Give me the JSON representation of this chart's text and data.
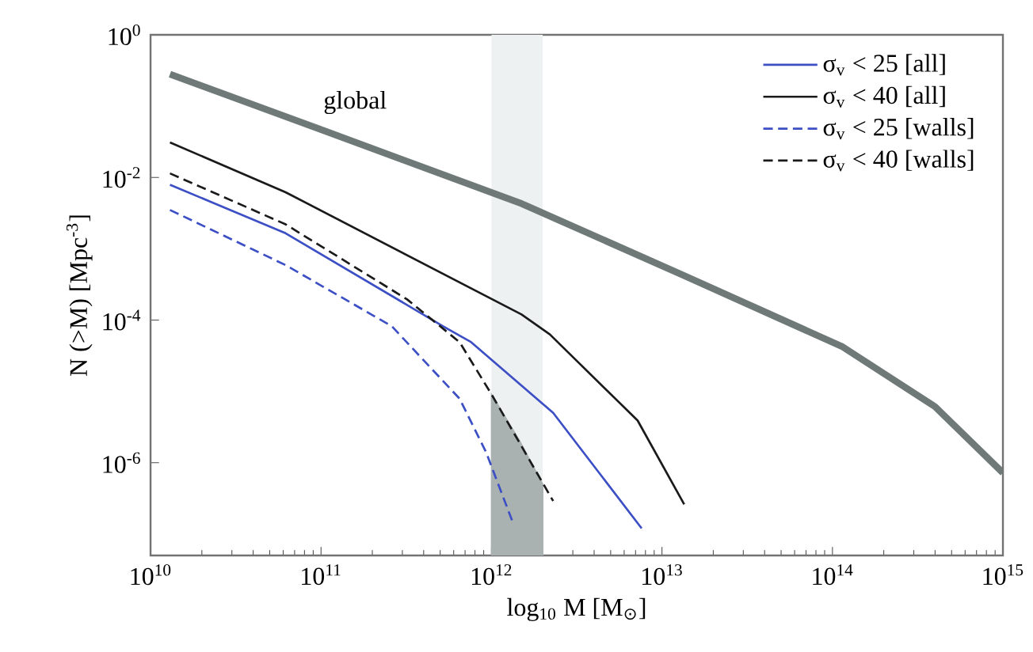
{
  "chart_data": {
    "type": "line",
    "xlabel": "log$_{10}$ M [M$_{⊙}$]",
    "ylabel": "N (>M) [Mpc$^{-3}$]",
    "log": "xy",
    "xlim": [
      10000000000.0,
      1000000000000000.0
    ],
    "ylim": [
      5e-08,
      1
    ],
    "xticks": [
      {
        "value": 10000000000.0,
        "label": "10$^{10}$"
      },
      {
        "value": 100000000000.0,
        "label": "10$^{11}$"
      },
      {
        "value": 1000000000000.0,
        "label": "10$^{12}$"
      },
      {
        "value": 10000000000000.0,
        "label": "10$^{13}$"
      },
      {
        "value": 100000000000000.0,
        "label": "10$^{14}$"
      },
      {
        "value": 1000000000000000.0,
        "label": "10$^{15}$"
      }
    ],
    "yticks": [
      {
        "value": 1e-06,
        "label": "10$^{-6}$"
      },
      {
        "value": 0.0001,
        "label": "10$^{-4}$"
      },
      {
        "value": 0.01,
        "label": "10$^{-2}$"
      },
      {
        "value": 1,
        "label": "10$^{0}$"
      }
    ],
    "grid": false,
    "legend": "top right",
    "bands": [
      {
        "axis": "x",
        "from": 1000000000000.0,
        "to": 2000000000000.0,
        "color": "#eef1f1"
      }
    ],
    "annotations": [
      "global"
    ],
    "series": [
      {
        "color": "#6f7a78",
        "line_style": "solid",
        "x": [
          13000000000.0,
          100000000000.0,
          1500000000000.0,
          13500000000000.0,
          115000000000000.0,
          400000000000000.0,
          1000000000000000.0
        ],
        "values": [
          0.28,
          0.047,
          0.0043,
          0.00042,
          4.2e-05,
          6.1e-06,
          7.2e-07
        ]
      },
      {
        "type": "area",
        "color": "#a9b1b1",
        "x": [
          1000000000000.0,
          1450000000000.0,
          2000000000000.0
        ],
        "values": [
          9.1e-06,
          2.1e-06,
          5e-07
        ]
      },
      {
        "name": "σ$_{v}$ < 25  [all]",
        "color": "#3c4fc4",
        "line_style": "solid",
        "x": [
          13000000000.0,
          62000000000.0,
          520000000000.0,
          760000000000.0,
          2300000000000.0,
          7600000000000.0
        ],
        "values": [
          0.0079,
          0.00165,
          8.2e-05,
          4.9e-05,
          5e-06,
          1.2e-07
        ]
      },
      {
        "name": "σ$_{v}$ < 40  [all]",
        "color": "#1a1a1a",
        "line_style": "solid",
        "x": [
          13000000000.0,
          62000000000.0,
          1500000000000.0,
          2200000000000.0,
          7200000000000.0,
          13500000000000.0
        ],
        "values": [
          0.031,
          0.0062,
          0.00012,
          6.3e-05,
          3.9e-06,
          2.6e-07
        ]
      },
      {
        "name": "σ$_{v}$ < 25  [walls]",
        "color": "#3c4fc4",
        "line_style": "dashed",
        "x": [
          13000000000.0,
          62000000000.0,
          260000000000.0,
          650000000000.0,
          930000000000.0,
          1320000000000.0
        ],
        "values": [
          0.0035,
          0.00059,
          8.2e-05,
          7.9e-06,
          1.4e-06,
          1.55e-07
        ]
      },
      {
        "name": "σ$_{v}$ < 40  [walls]",
        "color": "#1a1a1a",
        "line_style": "dashed",
        "x": [
          13000000000.0,
          62000000000.0,
          320000000000.0,
          650000000000.0,
          1000000000000.0,
          2300000000000.0
        ],
        "values": [
          0.0114,
          0.0022,
          0.000195,
          4.9e-05,
          9.1e-06,
          2.9e-07
        ]
      }
    ]
  }
}
